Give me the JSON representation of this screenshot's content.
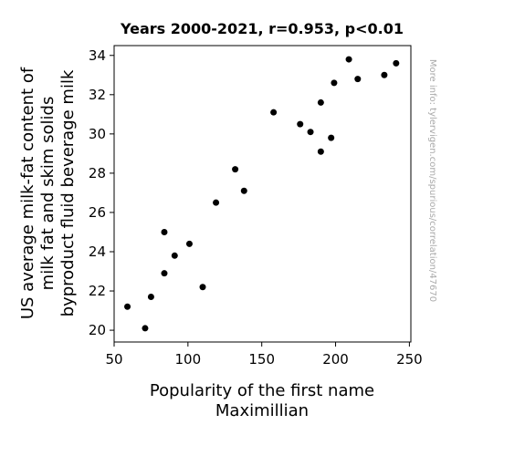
{
  "chart_data": {
    "type": "scatter",
    "title": "Years 2000-2021, r=0.953, p<0.01",
    "xlabel_lines": [
      "Popularity of the first name",
      "Maximillian"
    ],
    "ylabel_lines": [
      "US average milk-fat content of",
      "milk fat and skim solids",
      "byproduct fluid beverage milk"
    ],
    "xlim": [
      50,
      251
    ],
    "ylim": [
      19.4,
      34.5
    ],
    "xticks": [
      50,
      100,
      150,
      200,
      250
    ],
    "yticks": [
      20,
      22,
      24,
      26,
      28,
      30,
      32,
      34
    ],
    "grid": false,
    "legend": "none",
    "marker_color": "#000000",
    "points": [
      {
        "x": 59,
        "y": 21.2
      },
      {
        "x": 71,
        "y": 20.1
      },
      {
        "x": 75,
        "y": 21.7
      },
      {
        "x": 84,
        "y": 25.0
      },
      {
        "x": 84,
        "y": 22.9
      },
      {
        "x": 91,
        "y": 23.8
      },
      {
        "x": 101,
        "y": 24.4
      },
      {
        "x": 110,
        "y": 22.2
      },
      {
        "x": 119,
        "y": 26.5
      },
      {
        "x": 132,
        "y": 28.2
      },
      {
        "x": 138,
        "y": 27.1
      },
      {
        "x": 158,
        "y": 31.1
      },
      {
        "x": 176,
        "y": 30.5
      },
      {
        "x": 183,
        "y": 30.1
      },
      {
        "x": 190,
        "y": 31.6
      },
      {
        "x": 190,
        "y": 29.1
      },
      {
        "x": 197,
        "y": 29.8
      },
      {
        "x": 199,
        "y": 32.6
      },
      {
        "x": 209,
        "y": 33.8
      },
      {
        "x": 215,
        "y": 32.8
      },
      {
        "x": 233,
        "y": 33.0
      },
      {
        "x": 241,
        "y": 33.6
      }
    ]
  },
  "side_note": "More info: tylervigen.com/spurious/correlation/47670"
}
